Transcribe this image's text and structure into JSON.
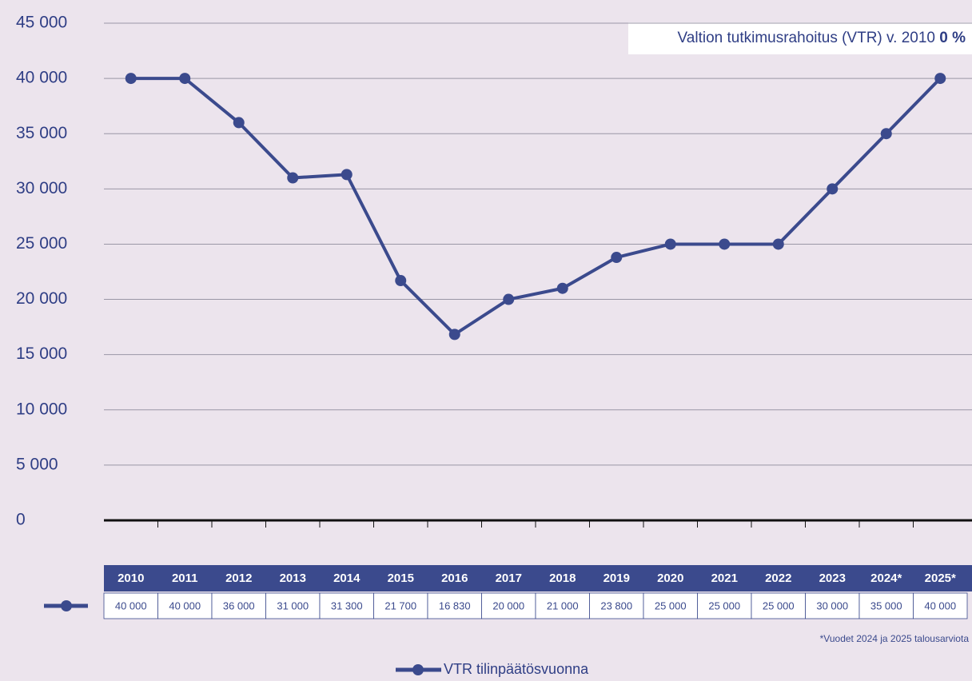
{
  "chart_data": {
    "type": "line",
    "title": "Valtion tutkimusrahoitus (VTR) v. 2010",
    "title_emphasis": "0 %",
    "footnote": "*Vuodet 2024 ja 2025 talousarviota",
    "categories": [
      "2010",
      "2011",
      "2012",
      "2013",
      "2014",
      "2015",
      "2016",
      "2017",
      "2018",
      "2019",
      "2020",
      "2021",
      "2022",
      "2023",
      "2024*",
      "2025*"
    ],
    "series": [
      {
        "name": "VTR tilinpäätösvuonna",
        "color": "#3b4a8d",
        "values": [
          40000,
          40000,
          36000,
          31000,
          31300,
          21700,
          16830,
          20000,
          21000,
          23800,
          25000,
          25000,
          25000,
          30000,
          35000,
          40000
        ],
        "value_labels": [
          "40 000",
          "40 000",
          "36 000",
          "31 000",
          "31 300",
          "21 700",
          "16 830",
          "20 000",
          "21 000",
          "23 800",
          "25 000",
          "25 000",
          "25 000",
          "30 000",
          "35 000",
          "40 000"
        ]
      }
    ],
    "ylim": [
      0,
      45000
    ],
    "yticks": [
      0,
      {
        "value": 5000,
        "label": "5 000"
      },
      {
        "value": 10000,
        "label": "10 000"
      },
      {
        "value": 15000,
        "label": "15 000"
      },
      {
        "value": 20000,
        "label": "20 000"
      },
      {
        "value": 25000,
        "label": "25 000"
      },
      {
        "value": 30000,
        "label": "30 000"
      },
      {
        "value": 35000,
        "label": "35 000"
      },
      {
        "value": 40000,
        "label": "40 000"
      },
      {
        "value": 45000,
        "label": "45 000"
      }
    ],
    "grid": true
  }
}
